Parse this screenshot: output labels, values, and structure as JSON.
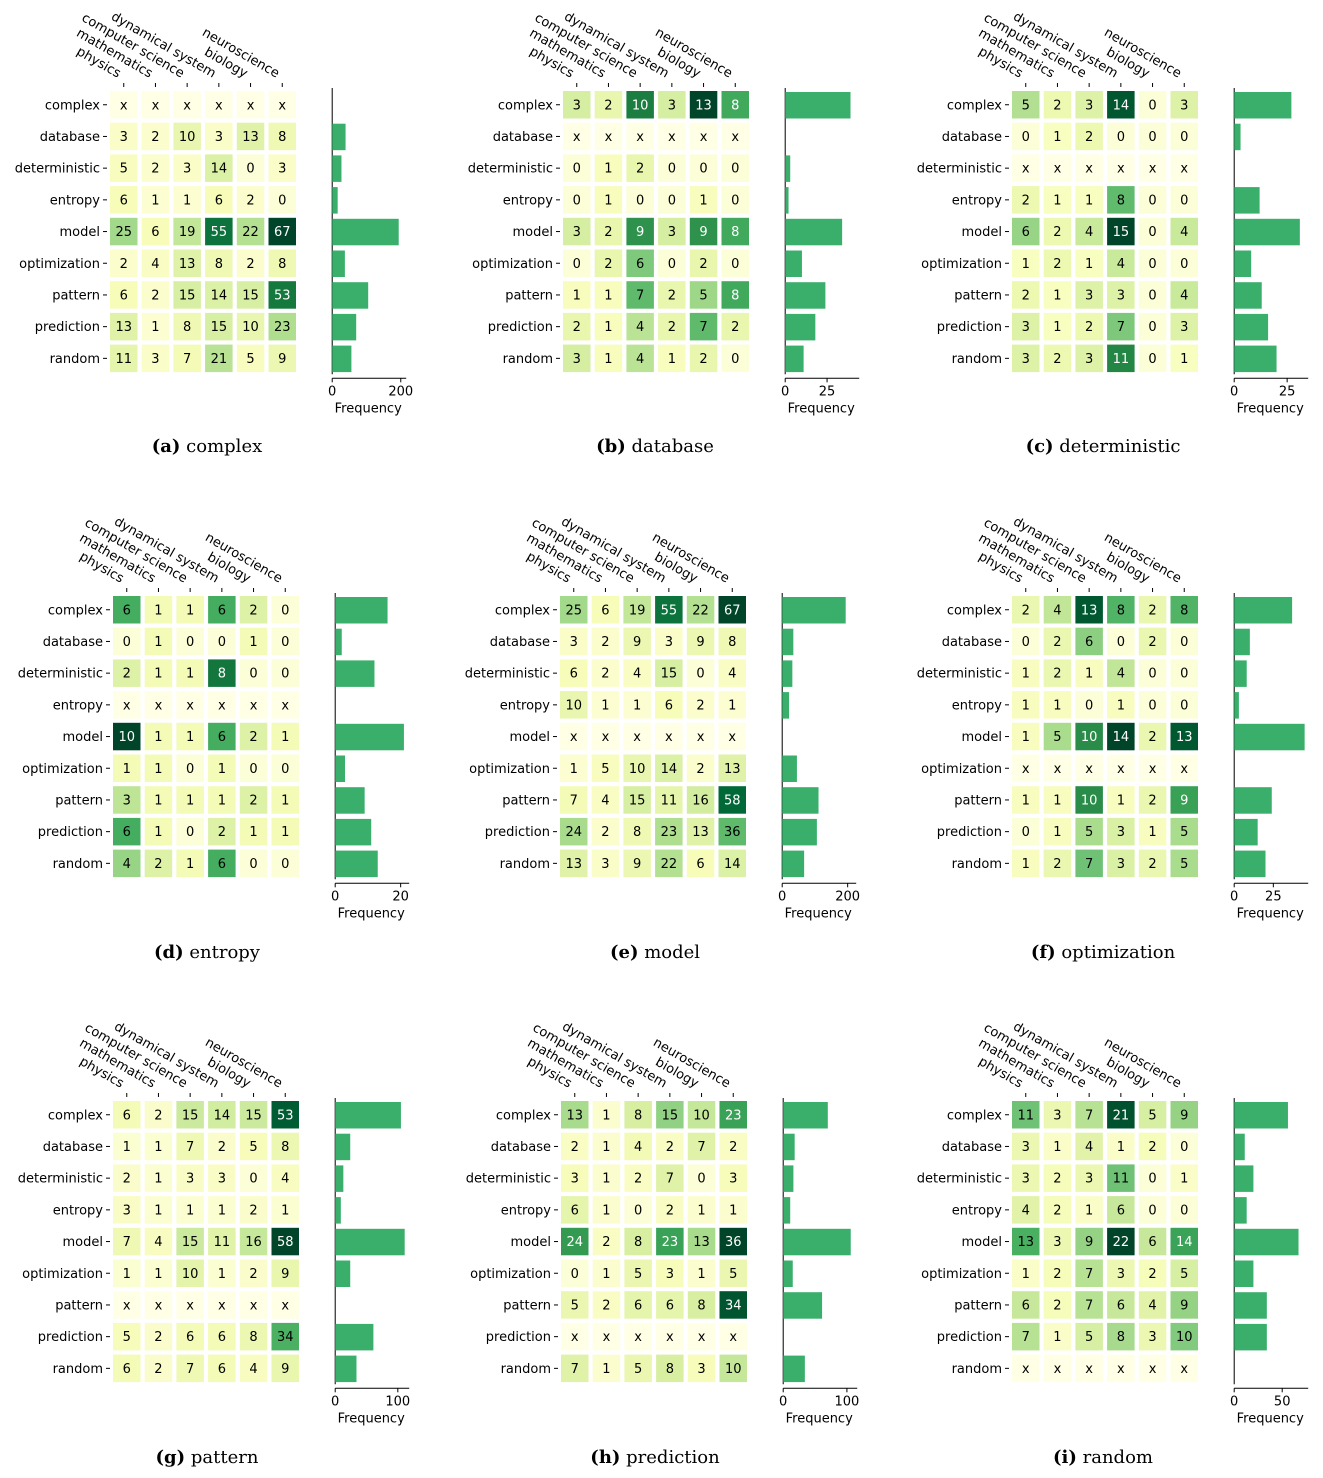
{
  "columns": [
    "physics",
    "mathematics",
    "computer science",
    "dynamical system",
    "biology",
    "neuroscience"
  ],
  "rows": [
    "complex",
    "database",
    "deterministic",
    "entropy",
    "model",
    "optimization",
    "pattern",
    "prediction",
    "random"
  ],
  "missing_marker": "x",
  "xlabel": "Frequency",
  "colors": {
    "bar": "#3aaf6c",
    "scale_low": "#ffffe5",
    "scale_mid": "#addd8e",
    "scale_high": "#004529"
  },
  "chart_data": [
    {
      "type": "heatmap",
      "label": "(a)",
      "title": "complex",
      "values": [
        [
          null,
          null,
          null,
          null,
          null,
          null
        ],
        [
          3,
          2,
          10,
          3,
          13,
          8
        ],
        [
          5,
          2,
          3,
          14,
          0,
          3
        ],
        [
          6,
          1,
          1,
          6,
          2,
          0
        ],
        [
          25,
          6,
          19,
          55,
          22,
          67
        ],
        [
          2,
          4,
          13,
          8,
          2,
          8
        ],
        [
          6,
          2,
          15,
          14,
          15,
          53
        ],
        [
          13,
          1,
          8,
          15,
          10,
          23
        ],
        [
          11,
          3,
          7,
          21,
          5,
          9
        ]
      ],
      "xticks": [
        0,
        200
      ],
      "xlim": [
        0,
        210
      ]
    },
    {
      "type": "heatmap",
      "label": "(b)",
      "title": "database",
      "values": [
        [
          3,
          2,
          10,
          3,
          13,
          8
        ],
        [
          null,
          null,
          null,
          null,
          null,
          null
        ],
        [
          0,
          1,
          2,
          0,
          0,
          0
        ],
        [
          0,
          1,
          0,
          0,
          1,
          0
        ],
        [
          3,
          2,
          9,
          3,
          9,
          8
        ],
        [
          0,
          2,
          6,
          0,
          2,
          0
        ],
        [
          1,
          1,
          7,
          2,
          5,
          8
        ],
        [
          2,
          1,
          4,
          2,
          7,
          2
        ],
        [
          3,
          1,
          4,
          1,
          2,
          0
        ]
      ],
      "xticks": [
        0,
        25
      ],
      "xlim": [
        0,
        43
      ]
    },
    {
      "type": "heatmap",
      "label": "(c)",
      "title": "deterministic",
      "values": [
        [
          5,
          2,
          3,
          14,
          0,
          3
        ],
        [
          0,
          1,
          2,
          0,
          0,
          0
        ],
        [
          null,
          null,
          null,
          null,
          null,
          null
        ],
        [
          2,
          1,
          1,
          8,
          0,
          0
        ],
        [
          6,
          2,
          4,
          15,
          0,
          4
        ],
        [
          1,
          2,
          1,
          4,
          0,
          0
        ],
        [
          2,
          1,
          3,
          3,
          0,
          4
        ],
        [
          3,
          1,
          2,
          7,
          0,
          3
        ],
        [
          3,
          2,
          3,
          11,
          0,
          1
        ]
      ],
      "xticks": [
        0,
        25
      ],
      "xlim": [
        0,
        34
      ]
    },
    {
      "type": "heatmap",
      "label": "(d)",
      "title": "entropy",
      "values": [
        [
          6,
          1,
          1,
          6,
          2,
          0
        ],
        [
          0,
          1,
          0,
          0,
          1,
          0
        ],
        [
          2,
          1,
          1,
          8,
          0,
          0
        ],
        [
          null,
          null,
          null,
          null,
          null,
          null
        ],
        [
          10,
          1,
          1,
          6,
          2,
          1
        ],
        [
          1,
          1,
          0,
          1,
          0,
          0
        ],
        [
          3,
          1,
          1,
          1,
          2,
          1
        ],
        [
          6,
          1,
          0,
          2,
          1,
          1
        ],
        [
          4,
          2,
          1,
          6,
          0,
          0
        ]
      ],
      "xticks": [
        0,
        20
      ],
      "xlim": [
        0,
        22
      ]
    },
    {
      "type": "heatmap",
      "label": "(e)",
      "title": "model",
      "values": [
        [
          25,
          6,
          19,
          55,
          22,
          67
        ],
        [
          3,
          2,
          9,
          3,
          9,
          8
        ],
        [
          6,
          2,
          4,
          15,
          0,
          4
        ],
        [
          10,
          1,
          1,
          6,
          2,
          1
        ],
        [
          null,
          null,
          null,
          null,
          null,
          null
        ],
        [
          1,
          5,
          10,
          14,
          2,
          13
        ],
        [
          7,
          4,
          15,
          11,
          16,
          58
        ],
        [
          24,
          2,
          8,
          23,
          13,
          36
        ],
        [
          13,
          3,
          9,
          22,
          6,
          14
        ]
      ],
      "xticks": [
        0,
        200
      ],
      "xlim": [
        0,
        220
      ]
    },
    {
      "type": "heatmap",
      "label": "(f)",
      "title": "optimization",
      "values": [
        [
          2,
          4,
          13,
          8,
          2,
          8
        ],
        [
          0,
          2,
          6,
          0,
          2,
          0
        ],
        [
          1,
          2,
          1,
          4,
          0,
          0
        ],
        [
          1,
          1,
          0,
          1,
          0,
          0
        ],
        [
          1,
          5,
          10,
          14,
          2,
          13
        ],
        [
          null,
          null,
          null,
          null,
          null,
          null
        ],
        [
          1,
          1,
          10,
          1,
          2,
          9
        ],
        [
          0,
          1,
          5,
          3,
          1,
          5
        ],
        [
          1,
          2,
          7,
          3,
          2,
          5
        ]
      ],
      "xticks": [
        0,
        25
      ],
      "xlim": [
        0,
        46
      ]
    },
    {
      "type": "heatmap",
      "label": "(g)",
      "title": "pattern",
      "values": [
        [
          6,
          2,
          15,
          14,
          15,
          53
        ],
        [
          1,
          1,
          7,
          2,
          5,
          8
        ],
        [
          2,
          1,
          3,
          3,
          0,
          4
        ],
        [
          3,
          1,
          1,
          1,
          2,
          1
        ],
        [
          7,
          4,
          15,
          11,
          16,
          58
        ],
        [
          1,
          1,
          10,
          1,
          2,
          9
        ],
        [
          null,
          null,
          null,
          null,
          null,
          null
        ],
        [
          5,
          2,
          6,
          6,
          8,
          34
        ],
        [
          6,
          2,
          7,
          6,
          4,
          9
        ]
      ],
      "xticks": [
        0,
        100
      ],
      "xlim": [
        0,
        115
      ]
    },
    {
      "type": "heatmap",
      "label": "(h)",
      "title": "prediction",
      "values": [
        [
          13,
          1,
          8,
          15,
          10,
          23
        ],
        [
          2,
          1,
          4,
          2,
          7,
          2
        ],
        [
          3,
          1,
          2,
          7,
          0,
          3
        ],
        [
          6,
          1,
          0,
          2,
          1,
          1
        ],
        [
          24,
          2,
          8,
          23,
          13,
          36
        ],
        [
          0,
          1,
          5,
          3,
          1,
          5
        ],
        [
          5,
          2,
          6,
          6,
          8,
          34
        ],
        [
          null,
          null,
          null,
          null,
          null,
          null
        ],
        [
          7,
          1,
          5,
          8,
          3,
          10
        ]
      ],
      "xticks": [
        0,
        100
      ],
      "xlim": [
        0,
        113
      ]
    },
    {
      "type": "heatmap",
      "label": "(i)",
      "title": "random",
      "values": [
        [
          11,
          3,
          7,
          21,
          5,
          9
        ],
        [
          3,
          1,
          4,
          1,
          2,
          0
        ],
        [
          3,
          2,
          3,
          11,
          0,
          1
        ],
        [
          4,
          2,
          1,
          6,
          0,
          0
        ],
        [
          13,
          3,
          9,
          22,
          6,
          14
        ],
        [
          1,
          2,
          7,
          3,
          2,
          5
        ],
        [
          6,
          2,
          7,
          6,
          4,
          9
        ],
        [
          7,
          1,
          5,
          8,
          3,
          10
        ],
        [
          null,
          null,
          null,
          null,
          null,
          null
        ]
      ],
      "xticks": [
        0,
        50
      ],
      "xlim": [
        0,
        75
      ]
    }
  ]
}
